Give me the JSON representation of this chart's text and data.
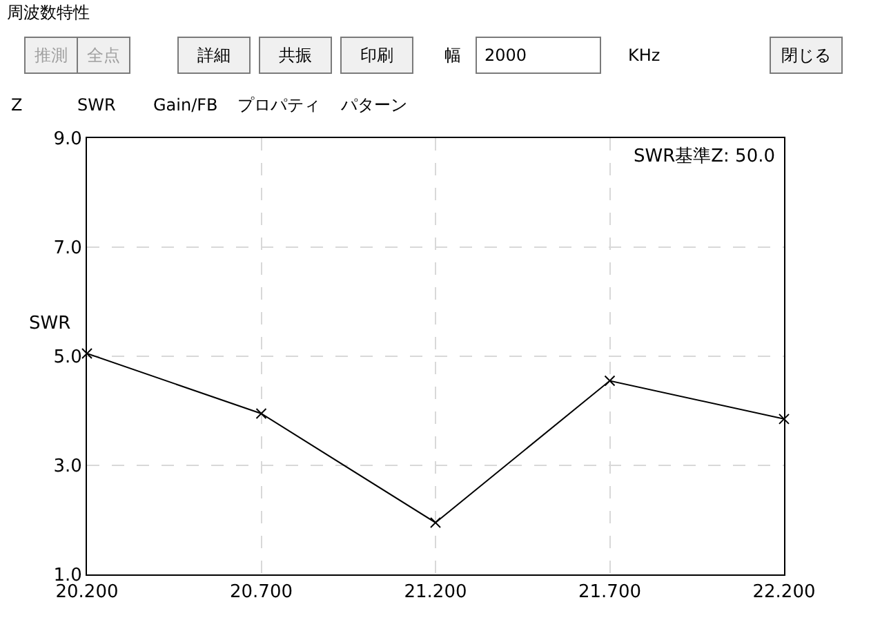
{
  "chart_data": [
    {
      "type": "other",
      "title": "周波数特性",
      "annotations": [
        "推測",
        "全点",
        "詳細",
        "共振",
        "印刷",
        "幅",
        "2000",
        "KHz",
        "閉じる",
        "Z",
        "SWR",
        "Gain/FB",
        "プロパティ",
        "パターン"
      ]
    },
    {
      "type": "line",
      "ylabel": "SWR",
      "x": [
        20.2,
        20.7,
        21.2,
        21.7,
        22.2
      ],
      "series": [
        {
          "color": "#000000",
          "values": [
            5.05,
            3.95,
            1.95,
            4.55,
            3.85
          ]
        }
      ],
      "xlim": [
        20.2,
        22.2
      ],
      "xticks": [
        {
          "value": 20.2,
          "label": "20.200"
        },
        {
          "value": 20.7,
          "label": "20.700"
        },
        {
          "value": 21.2,
          "label": "21.200"
        },
        {
          "value": 21.7,
          "label": "21.700"
        },
        {
          "value": 22.2,
          "label": "22.200"
        }
      ],
      "ylim": [
        1,
        9
      ],
      "yticks": [
        {
          "value": 1,
          "label": "1.0"
        },
        {
          "value": 3,
          "label": "3.0"
        },
        {
          "value": 5,
          "label": "5.0"
        },
        {
          "value": 7,
          "label": "7.0"
        },
        {
          "value": 9,
          "label": "9.0"
        }
      ],
      "grid": true,
      "marker": "cross",
      "line_style": "solid",
      "annotations": [
        "SWR基準Z: 50.0"
      ]
    }
  ]
}
